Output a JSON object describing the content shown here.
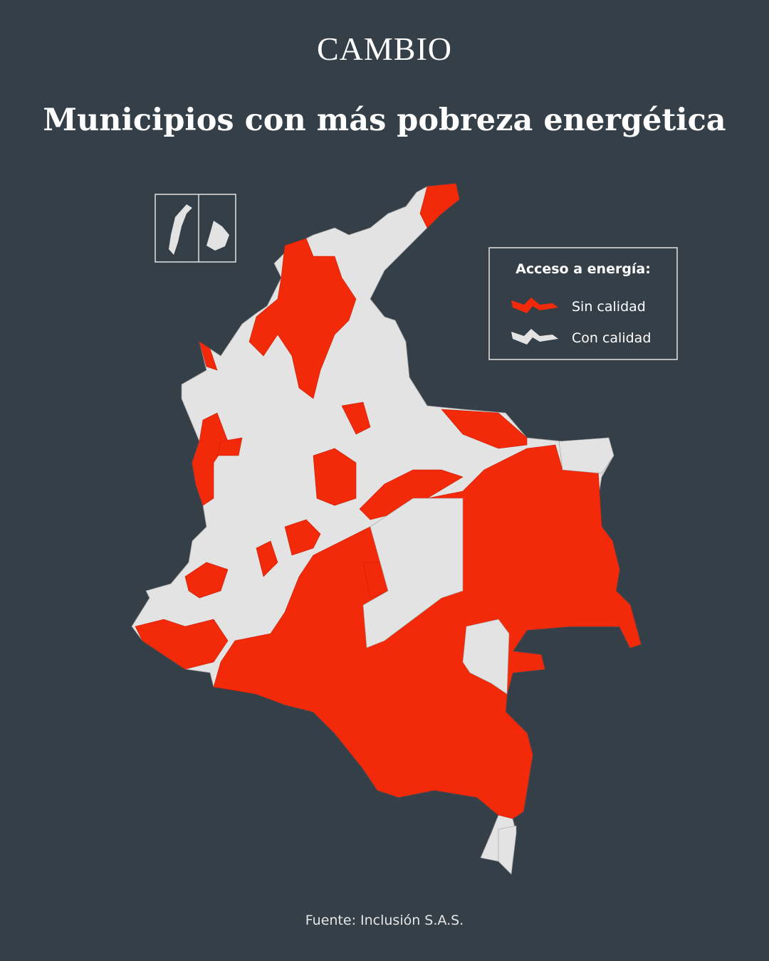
{
  "brand": "CAMBIO",
  "title": "Municipios con más pobreza energética",
  "legend": {
    "title": "Acceso a energía:",
    "items": [
      {
        "label": "Sin calidad",
        "color": "#f22a0a"
      },
      {
        "label": "Con calidad",
        "color": "#e3e3e3"
      }
    ]
  },
  "source": "Fuente: Inclusión S.A.S."
}
